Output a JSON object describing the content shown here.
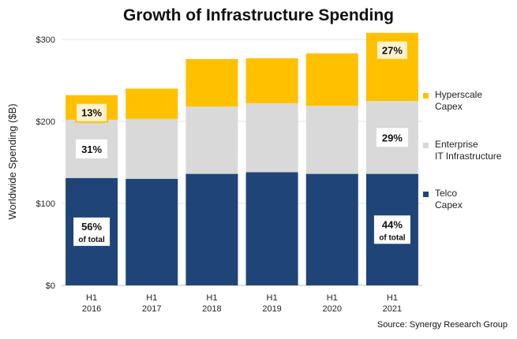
{
  "chart_data": {
    "type": "bar",
    "stacked": true,
    "title": "Growth of Infrastructure Spending",
    "ylabel": "Worldwide Spending ($B)",
    "xlabel": "",
    "ylim": [
      0,
      300
    ],
    "yticks": [
      "$0",
      "$100",
      "$200",
      "$300"
    ],
    "grid": true,
    "legend_position": "right",
    "categories": [
      [
        "H1",
        "2016"
      ],
      [
        "H1",
        "2017"
      ],
      [
        "H1",
        "2018"
      ],
      [
        "H1",
        "2019"
      ],
      [
        "H1",
        "2020"
      ],
      [
        "H1",
        "2021"
      ]
    ],
    "series": [
      {
        "name": "Telco Capex",
        "legend_lines": [
          "Telco",
          "Capex"
        ],
        "color": "#1F4578",
        "values": [
          131,
          130,
          136,
          138,
          136,
          136
        ]
      },
      {
        "name": "Enterprise IT Infrastructure",
        "legend_lines": [
          "Enterprise",
          "IT Infrastructure"
        ],
        "color": "#D9D9D9",
        "values": [
          71,
          73,
          82,
          84,
          83,
          89
        ]
      },
      {
        "name": "Hyperscale Capex",
        "legend_lines": [
          "Hyperscale",
          "Capex"
        ],
        "color": "#FFC000",
        "values": [
          30,
          37,
          58,
          55,
          64,
          83
        ]
      }
    ],
    "annotations": [
      {
        "category_index": 0,
        "series_index": 0,
        "lines": [
          "56%",
          "of total"
        ]
      },
      {
        "category_index": 0,
        "series_index": 1,
        "lines": [
          "31%"
        ]
      },
      {
        "category_index": 0,
        "series_index": 2,
        "lines": [
          "13%"
        ]
      },
      {
        "category_index": 5,
        "series_index": 0,
        "lines": [
          "44%",
          "of total"
        ]
      },
      {
        "category_index": 5,
        "series_index": 1,
        "lines": [
          "29%"
        ]
      },
      {
        "category_index": 5,
        "series_index": 2,
        "lines": [
          "27%"
        ]
      }
    ]
  },
  "source": "Source: Synergy Research Group"
}
